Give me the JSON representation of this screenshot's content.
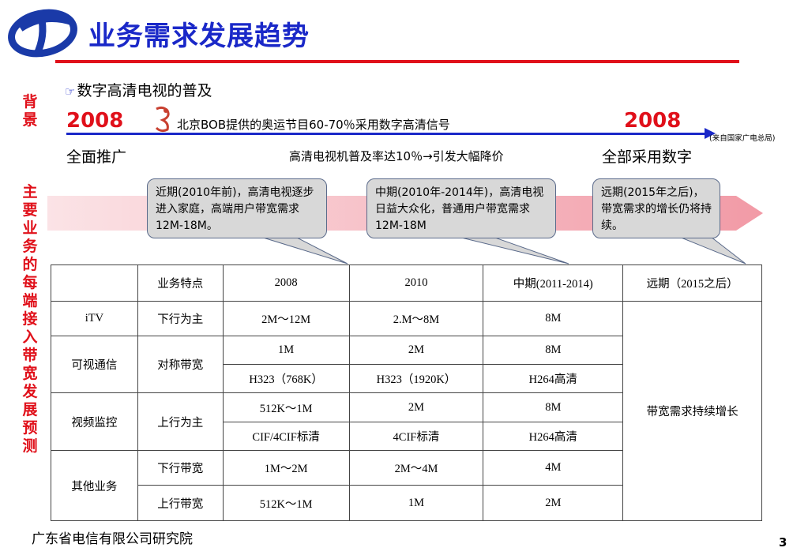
{
  "header": {
    "title": "业务需求发展趋势"
  },
  "side_labels": {
    "background": "背景",
    "prediction": "主要业务的每端接入带宽发展预测"
  },
  "bullet": {
    "text": "数字高清电视的普及"
  },
  "timeline": {
    "year_left": "2008",
    "year_right": "2008",
    "olympic_note": "北京BOB提供的奥运节目60-70％采用数字高清信号",
    "source": "(来自国家广电总局)",
    "milestone_left": "全面推广",
    "milestone_mid": "高清电视机普及率达10％→引发大幅降价",
    "milestone_right": "全部采用数字"
  },
  "callouts": [
    {
      "text": "近期(2010年前)，高清电视逐步进入家庭，高端用户带宽需求12M-18M。"
    },
    {
      "text": "中期(2010年-2014年)，高清电视日益大众化，普通用户带宽需求12M-18M"
    },
    {
      "text": "远期(2015年之后)，带宽需求的增长仍将持续。"
    }
  ],
  "table": {
    "headers": [
      "",
      "业务特点",
      "2008",
      "2010",
      "中期(2011-2014)",
      "远期（2015之后）"
    ],
    "rows": {
      "itv": {
        "service": "iTV",
        "feature": "下行为主",
        "y2008": "2M～12M",
        "y2010": "2.M～8M",
        "mid": "8M"
      },
      "video_call": {
        "service": "可视通信",
        "feature": "对称带宽",
        "r1": {
          "y2008": "1M",
          "y2010": "2M",
          "mid": "8M"
        },
        "r2": {
          "y2008": "H323（768K）",
          "y2010": "H323（1920K）",
          "mid": "H264高清"
        }
      },
      "surveillance": {
        "service": "视频监控",
        "feature": "上行为主",
        "r1": {
          "y2008": "512K～1M",
          "y2010": "2M",
          "mid": "8M"
        },
        "r2": {
          "y2008": "CIF/4CIF标清",
          "y2010": "4CIF标清",
          "mid": "H264高清"
        }
      },
      "other": {
        "service": "其他业务",
        "r1": {
          "feature": "下行带宽",
          "y2008": "1M～2M",
          "y2010": "2M～4M",
          "mid": "4M"
        },
        "r2": {
          "feature": "上行带宽",
          "y2008": "512K～1M",
          "y2010": "1M",
          "mid": "2M"
        }
      },
      "longterm": "带宽需求持续增长"
    }
  },
  "footer": {
    "org": "广东省电信有限公司研究院",
    "page": "3"
  },
  "colors": {
    "title_blue": "#1a28c8",
    "accent_red": "#e0101a",
    "callout_gray": "#d8d8d8"
  }
}
